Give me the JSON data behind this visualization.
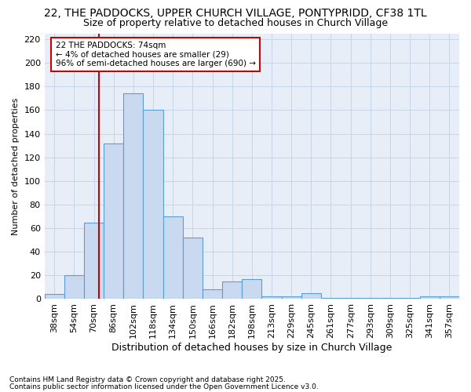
{
  "title1": "22, THE PADDOCKS, UPPER CHURCH VILLAGE, PONTYPRIDD, CF38 1TL",
  "title2": "Size of property relative to detached houses in Church Village",
  "xlabel": "Distribution of detached houses by size in Church Village",
  "ylabel": "Number of detached properties",
  "footnote1": "Contains HM Land Registry data © Crown copyright and database right 2025.",
  "footnote2": "Contains public sector information licensed under the Open Government Licence v3.0.",
  "categories": [
    "38sqm",
    "54sqm",
    "70sqm",
    "86sqm",
    "102sqm",
    "118sqm",
    "134sqm",
    "150sqm",
    "166sqm",
    "182sqm",
    "198sqm",
    "213sqm",
    "229sqm",
    "245sqm",
    "261sqm",
    "277sqm",
    "293sqm",
    "309sqm",
    "325sqm",
    "341sqm",
    "357sqm"
  ],
  "values": [
    4,
    20,
    65,
    132,
    174,
    160,
    70,
    52,
    8,
    15,
    17,
    2,
    2,
    5,
    1,
    1,
    1,
    1,
    1,
    2,
    2
  ],
  "bar_color": "#c8d9f0",
  "bar_edge_color": "#5a9fd4",
  "grid_color": "#c8d4e8",
  "background_color": "#ffffff",
  "plot_bg_color": "#e8eef8",
  "annotation_box_color": "#ffffff",
  "annotation_border_color": "#cc0000",
  "red_line_color": "#cc0000",
  "annotation_text_line1": "22 THE PADDOCKS: 74sqm",
  "annotation_text_line2": "← 4% of detached houses are smaller (29)",
  "annotation_text_line3": "96% of semi-detached houses are larger (690) →",
  "ylim": [
    0,
    225
  ],
  "yticks": [
    0,
    20,
    40,
    60,
    80,
    100,
    120,
    140,
    160,
    180,
    200,
    220
  ],
  "title1_fontsize": 10,
  "title2_fontsize": 9,
  "xlabel_fontsize": 9,
  "ylabel_fontsize": 8,
  "footnote_fontsize": 6.5,
  "tick_fontsize": 8,
  "xtick_fontsize": 8
}
